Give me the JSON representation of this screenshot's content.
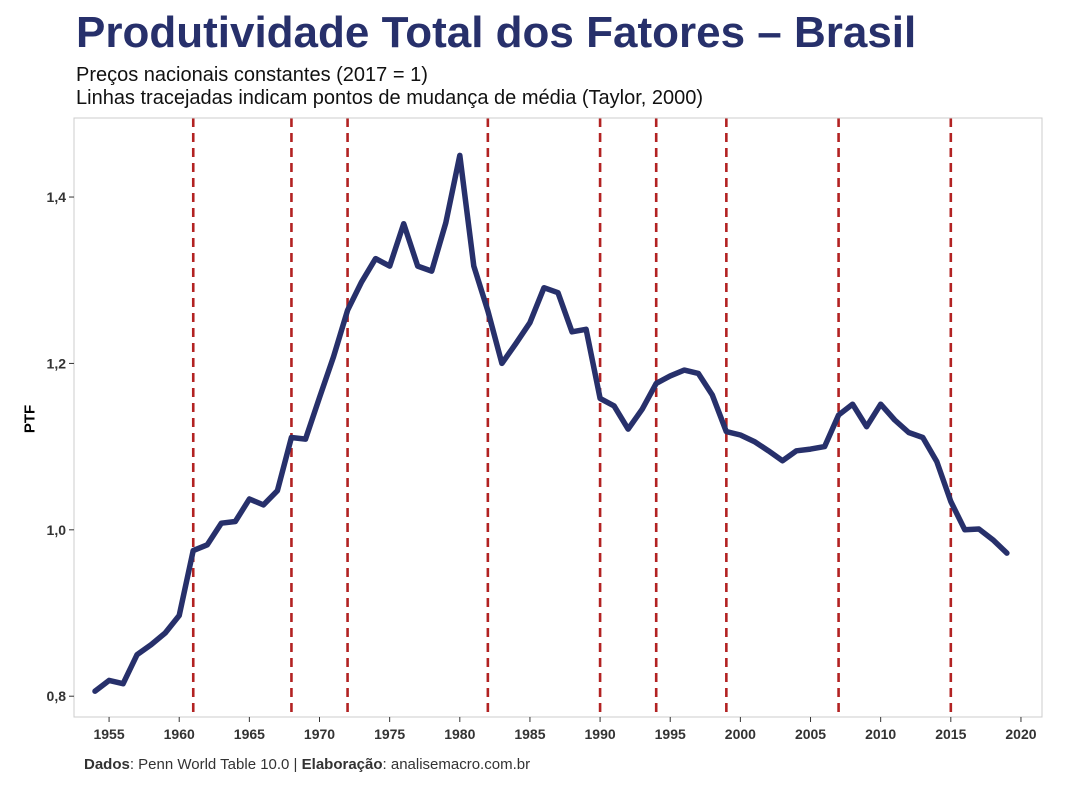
{
  "chart_data": {
    "type": "line",
    "title": "Produtividade Total dos Fatores – Brasil",
    "subtitle": [
      "Preços nacionais constantes (2017 = 1)",
      "Linhas tracejadas indicam pontos de mudança de média (Taylor, 2000)"
    ],
    "xlabel": "",
    "ylabel": "PTF",
    "xlim": [
      1952.5,
      2021.5
    ],
    "ylim": [
      0.775,
      1.495
    ],
    "x_ticks": [
      1955,
      1960,
      1965,
      1970,
      1975,
      1980,
      1985,
      1990,
      1995,
      2000,
      2005,
      2010,
      2015,
      2020
    ],
    "y_ticks": [
      0.8,
      1.0,
      1.2,
      1.4
    ],
    "y_tick_labels": [
      "0,8",
      "1,0",
      "1,2",
      "1,4"
    ],
    "grid": false,
    "line_color": "#27306b",
    "changepoint_color": "#b22222",
    "changepoints": [
      1961,
      1968,
      1972,
      1982,
      1990,
      1994,
      1999,
      2007,
      2015
    ],
    "x": [
      1954,
      1955,
      1956,
      1957,
      1958,
      1959,
      1960,
      1961,
      1962,
      1963,
      1964,
      1965,
      1966,
      1967,
      1968,
      1969,
      1970,
      1971,
      1972,
      1973,
      1974,
      1975,
      1976,
      1977,
      1978,
      1979,
      1980,
      1981,
      1982,
      1983,
      1984,
      1985,
      1986,
      1987,
      1988,
      1989,
      1990,
      1991,
      1992,
      1993,
      1994,
      1995,
      1996,
      1997,
      1998,
      1999,
      2000,
      2001,
      2002,
      2003,
      2004,
      2005,
      2006,
      2007,
      2008,
      2009,
      2010,
      2011,
      2012,
      2013,
      2014,
      2015,
      2016,
      2017,
      2018,
      2019
    ],
    "y": [
      0.806,
      0.819,
      0.815,
      0.85,
      0.862,
      0.876,
      0.897,
      0.975,
      0.982,
      1.008,
      1.01,
      1.037,
      1.03,
      1.047,
      1.111,
      1.109,
      1.159,
      1.208,
      1.264,
      1.298,
      1.326,
      1.317,
      1.368,
      1.317,
      1.311,
      1.369,
      1.45,
      1.317,
      1.263,
      1.2,
      1.224,
      1.249,
      1.291,
      1.285,
      1.238,
      1.241,
      1.158,
      1.149,
      1.121,
      1.145,
      1.176,
      1.185,
      1.192,
      1.188,
      1.162,
      1.118,
      1.114,
      1.106,
      1.095,
      1.083,
      1.095,
      1.097,
      1.1,
      1.138,
      1.151,
      1.124,
      1.151,
      1.132,
      1.117,
      1.111,
      1.082,
      1.034,
      1.0,
      1.001,
      0.988,
      0.972
    ]
  },
  "caption": {
    "data_label": "Dados",
    "data_value": ": Penn World Table 10.0 | ",
    "credit_label": "Elaboração",
    "credit_value": ": analisemacro.com.br"
  }
}
